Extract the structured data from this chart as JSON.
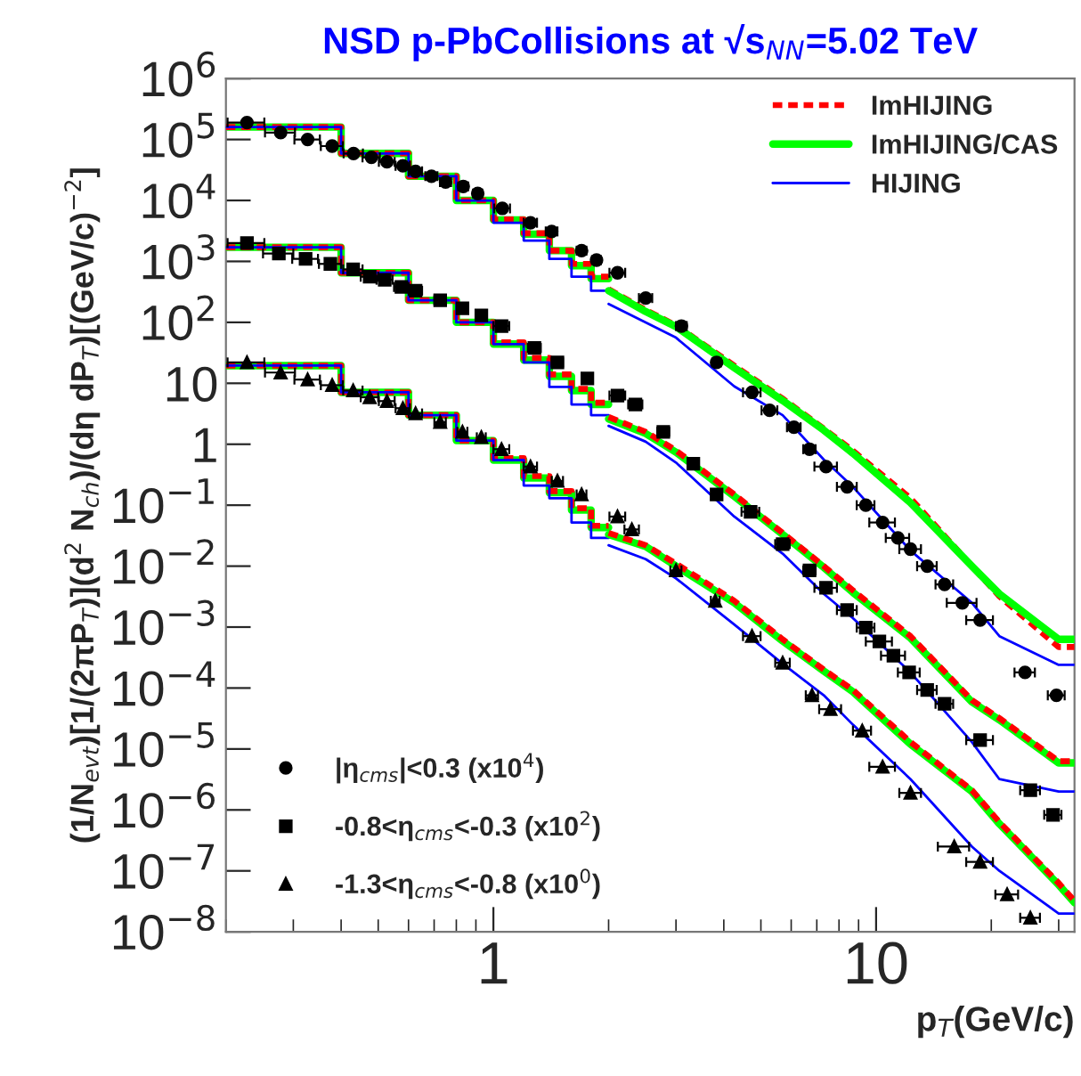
{
  "chart_data": {
    "type": "step",
    "title": "NSD p-PbCollisions at √s$_{NN}$=5.02 TeV",
    "xlabel": "p$_{T}$(GeV/c)",
    "ylabel": "(1/N$_{evt}$)[1/(2πP$_{T}$)](d$^{2}$ N$_{ch}$)/(dη dP$_{T}$)[(GeV/c)$^{−2}$]",
    "log": "xy",
    "legend": "top right",
    "grid": false,
    "xlim": [
      0.2,
      33
    ],
    "xticks": [
      1,
      10
    ],
    "ylim": [
      1e-08,
      1000000.0
    ],
    "yticks": [
      {
        "value": 1000000.0,
        "label": "10$^{6}$"
      },
      {
        "value": 100000.0,
        "label": "10$^{5}$"
      },
      {
        "value": 10000.0,
        "label": "10$^{4}$"
      },
      {
        "value": 1000.0,
        "label": "10$^{3}$"
      },
      {
        "value": 100.0,
        "label": "10$^{2}$"
      },
      {
        "value": 10,
        "label": "10"
      },
      {
        "value": 1,
        "label": "1"
      },
      {
        "value": 0.1,
        "label": "10$^{−1}$"
      },
      {
        "value": 0.01,
        "label": "10$^{−2}$"
      },
      {
        "value": 0.001,
        "label": "10$^{−3}$"
      },
      {
        "value": 0.0001,
        "label": "10$^{−4}$"
      },
      {
        "value": 1e-05,
        "label": "10$^{−5}$"
      },
      {
        "value": 1e-06,
        "label": "10$^{−6}$"
      },
      {
        "value": 1e-07,
        "label": "10$^{−7}$"
      },
      {
        "value": 1e-08,
        "label": "10$^{−8}$"
      }
    ],
    "x": [
      0.2,
      0.4,
      0.6,
      0.8,
      1.0,
      1.2,
      1.4,
      1.6,
      1.8,
      2.0
    ],
    "series": [
      {
        "color": "#00ff00",
        "line_style": "solid",
        "values": [
          160000.0,
          59000.0,
          25000.0,
          10000.0,
          4800.0,
          2800.0,
          1500.0,
          850,
          520,
          520
        ]
      },
      {
        "color": "#00ff00",
        "line_style": "solid",
        "values": [
          1700,
          650,
          230,
          100,
          44,
          24,
          13,
          7.6,
          4.5,
          4.5
        ]
      },
      {
        "color": "#00ff00",
        "line_style": "solid",
        "values": [
          19.5,
          7.1,
          3.0,
          1.15,
          0.55,
          0.28,
          0.16,
          0.083,
          0.043,
          0.043
        ]
      },
      {
        "color": "#ff0000",
        "line_style": "dashed",
        "values": [
          160000.0,
          59000.0,
          25000.0,
          10000.0,
          4900.0,
          2900.0,
          1500.0,
          910,
          560,
          560
        ]
      },
      {
        "color": "#ff0000",
        "line_style": "dashed",
        "values": [
          1700,
          650,
          230,
          100,
          47,
          26,
          14,
          8.1,
          4.8,
          4.8
        ]
      },
      {
        "color": "#ff0000",
        "line_style": "dashed",
        "values": [
          19.5,
          7.1,
          3.0,
          1.15,
          0.59,
          0.3,
          0.17,
          0.089,
          0.046,
          0.046
        ]
      },
      {
        "color": "#0000ff",
        "line_style": "solid",
        "values": [
          160000.0,
          59000.0,
          25000.0,
          10000.0,
          4300.0,
          2200.0,
          1100.0,
          560,
          330,
          330
        ]
      },
      {
        "color": "#0000ff",
        "line_style": "solid",
        "values": [
          1700,
          650,
          230,
          100,
          44,
          22,
          8.7,
          4.5,
          3.0,
          3.0
        ]
      },
      {
        "color": "#0000ff",
        "line_style": "solid",
        "values": [
          19.5,
          7.1,
          3.0,
          1.15,
          0.55,
          0.21,
          0.13,
          0.052,
          0.029,
          0.029
        ]
      },
      {
        "type": "line",
        "name": "ImHIJING",
        "color": "#ff0000",
        "line_style": "dashed",
        "x": [
          2.0,
          2.5,
          3.0,
          4.26,
          5.7,
          7.3,
          8.7,
          12.3,
          17.8,
          21,
          30,
          33
        ],
        "values": [
          350,
          160,
          89,
          19.5,
          5.6,
          1.8,
          0.78,
          0.13,
          0.01,
          0.0032,
          0.00047,
          0.00047
        ]
      },
      {
        "type": "line",
        "name": "ImHIJING/CAS",
        "color": "#00ff00",
        "line_style": "solid",
        "x": [
          2.0,
          2.5,
          3.0,
          4.26,
          5.7,
          7.3,
          8.7,
          12.3,
          17.8,
          21,
          30,
          33
        ],
        "values": [
          330,
          150,
          85,
          18,
          5.2,
          1.7,
          0.71,
          0.11,
          0.01,
          0.0035,
          0.00063,
          0.00063
        ]
      },
      {
        "type": "line",
        "name": "HIJING",
        "color": "#0000ff",
        "line_style": "solid",
        "x": [
          2.0,
          2.5,
          3.0,
          4.26,
          5.7,
          7.3,
          8.7,
          12.3,
          17.8,
          21,
          30,
          33
        ],
        "values": [
          200,
          100,
          56,
          8.9,
          3.0,
          0.56,
          0.2,
          0.018,
          0.0025,
          0.00071,
          0.00024,
          0.00024
        ]
      },
      {
        "type": "line",
        "color": "#0000ff",
        "line_style": "solid",
        "x": [
          2.0,
          2.5,
          3.0,
          4.26,
          5.7,
          7.3,
          8.7,
          12.3,
          17.8,
          21,
          30,
          33
        ],
        "values": [
          2.0,
          1.1,
          0.5,
          0.065,
          0.016,
          0.0035,
          0.0014,
          0.00018,
          1.3e-05,
          3.2e-06,
          2e-06,
          2e-06
        ]
      },
      {
        "type": "line",
        "color": "#0000ff",
        "line_style": "solid",
        "x": [
          2.0,
          2.5,
          3.0,
          4.26,
          5.7,
          7.3,
          8.7,
          12.3,
          17.8,
          21,
          30,
          33
        ],
        "values": [
          0.022,
          0.013,
          0.0063,
          0.0011,
          0.00025,
          7.6e-05,
          2.5e-05,
          3.2e-06,
          2.5e-07,
          1e-07,
          2e-08,
          2e-08
        ]
      },
      {
        "type": "line",
        "color": "#00ff00",
        "line_style": "solid",
        "x": [
          2.0,
          2.5,
          3.0,
          4.26,
          5.7,
          7.3,
          8.7,
          12.3,
          17.8,
          21,
          30,
          33
        ],
        "values": [
          2.6,
          1.5,
          0.74,
          0.14,
          0.033,
          0.0095,
          0.0037,
          0.00066,
          5.9e-05,
          3e-05,
          5.9e-06,
          5.9e-06
        ]
      },
      {
        "type": "line",
        "color": "#00ff00",
        "line_style": "solid",
        "x": [
          2.0,
          2.5,
          3.0,
          4.26,
          5.7,
          7.3,
          8.7,
          12.3,
          17.8,
          21,
          30,
          33
        ],
        "values": [
          0.033,
          0.021,
          0.01,
          0.0025,
          0.00059,
          0.00019,
          8.7e-05,
          1.2e-05,
          2e-06,
          5.9e-07,
          5.9e-08,
          3e-08
        ]
      },
      {
        "type": "line",
        "color": "#ff0000",
        "line_style": "dashed",
        "x": [
          2.0,
          2.5,
          3.0,
          4.26,
          5.7,
          7.3,
          8.7,
          12.3,
          17.8,
          21,
          30,
          33
        ],
        "values": [
          2.8,
          1.6,
          0.79,
          0.15,
          0.035,
          0.01,
          0.004,
          0.00071,
          6.3e-05,
          3.2e-05,
          6.3e-06,
          6.3e-06
        ]
      },
      {
        "type": "line",
        "color": "#ff0000",
        "line_style": "dashed",
        "x": [
          2.0,
          2.5,
          3.0,
          4.26,
          5.7,
          7.3,
          8.7,
          12.3,
          17.8,
          21,
          30,
          33
        ],
        "values": [
          0.035,
          0.022,
          0.011,
          0.0027,
          0.00063,
          0.0002,
          9.3e-05,
          1.3e-05,
          2.1e-06,
          6.3e-07,
          6.3e-08,
          3.2e-08
        ]
      },
      {
        "type": "scatter",
        "name": "|η$_{cms}$|<0.3 (x10$^{4}$)",
        "color": "#000000",
        "marker": "circle",
        "x": [
          0.227,
          0.278,
          0.327,
          0.379,
          0.431,
          0.48,
          0.527,
          0.58,
          0.626,
          0.689,
          0.75,
          0.834,
          0.91,
          1.055,
          1.25,
          1.42,
          1.7,
          1.86,
          2.11,
          2.5,
          3.1,
          3.83,
          4.74,
          5.27,
          6.1,
          6.7,
          7.4,
          8.4,
          9.4,
          10.4,
          11.4,
          12.3,
          13.6,
          15.1,
          16.8,
          18.7,
          24.5,
          29.6
        ],
        "values": [
          190000.0,
          130000.0,
          100000.0,
          78000.0,
          59000.0,
          51000.0,
          43000.0,
          37000.0,
          30000.0,
          25000.0,
          20000.0,
          17000.0,
          13000.0,
          7400,
          4300,
          3100,
          1500,
          1050,
          650,
          250,
          87,
          22,
          7.1,
          3.6,
          1.9,
          0.83,
          0.43,
          0.2,
          0.1,
          0.052,
          0.029,
          0.019,
          0.01,
          0.005,
          0.0025,
          0.0013,
          0.00018,
          7.6e-05
        ],
        "xerrors": [
          0.025,
          0.025,
          0.025,
          0.025,
          0.025,
          0.025,
          0.025,
          0.025,
          0.025,
          0.025,
          0.025,
          0.025,
          0.025,
          0.05,
          0.05,
          0.05,
          0.05,
          0.05,
          0.1,
          0.1,
          0.1,
          0.1,
          0.25,
          0.25,
          0.25,
          0.25,
          0.5,
          0.5,
          0.5,
          0.8,
          0.8,
          0.8,
          0.8,
          0.8,
          1.5,
          1.5,
          1.5,
          1.5
        ]
      },
      {
        "type": "scatter",
        "name": "-0.8<η$_{cms}$<-0.3 (x10$^{2}$)",
        "color": "#000000",
        "marker": "square",
        "x": [
          0.227,
          0.275,
          0.323,
          0.375,
          0.43,
          0.475,
          0.52,
          0.575,
          0.626,
          0.726,
          0.83,
          0.93,
          1.05,
          1.28,
          1.47,
          1.76,
          2.11,
          2.35,
          2.78,
          3.33,
          3.83,
          4.7,
          5.7,
          6.7,
          7.4,
          8.4,
          9.4,
          10.2,
          11.1,
          12.2,
          13.6,
          15.1,
          18.7,
          25.3,
          29
        ],
        "values": [
          2000,
          1350,
          1100,
          910,
          740,
          560,
          500,
          380,
          330,
          230,
          170,
          130,
          87,
          38,
          22,
          12,
          6.3,
          4.5,
          1.6,
          0.48,
          0.15,
          0.078,
          0.023,
          0.0085,
          0.0044,
          0.0019,
          0.00098,
          0.00058,
          0.00034,
          0.00018,
          9.3e-05,
          5.5e-05,
          1.4e-05,
          2.1e-06,
          8.3e-07
        ],
        "xerrors": [
          0.025,
          0.025,
          0.025,
          0.025,
          0.025,
          0.025,
          0.025,
          0.025,
          0.025,
          0.025,
          0.025,
          0.025,
          0.05,
          0.05,
          0.05,
          0.05,
          0.1,
          0.1,
          0.1,
          0.1,
          0.1,
          0.25,
          0.25,
          0.25,
          0.5,
          0.5,
          0.5,
          0.8,
          0.8,
          0.8,
          0.8,
          0.8,
          1.5,
          1.5,
          1.5
        ]
      },
      {
        "type": "scatter",
        "name": "-1.3<η$_{cms}$<-0.8 (x10$^{0}$)",
        "color": "#000000",
        "marker": "triangle",
        "x": [
          0.227,
          0.278,
          0.327,
          0.379,
          0.43,
          0.475,
          0.527,
          0.58,
          0.626,
          0.726,
          0.83,
          0.93,
          1.05,
          1.25,
          1.47,
          1.7,
          2.11,
          2.3,
          3.0,
          3.8,
          4.74,
          5.7,
          6.8,
          7.6,
          9.2,
          10.4,
          12.3,
          16,
          18.7,
          22,
          25.3
        ],
        "values": [
          22,
          15,
          11.5,
          9.3,
          7.6,
          5.9,
          5.1,
          3.9,
          3.2,
          2.3,
          1.6,
          1.3,
          0.83,
          0.43,
          0.25,
          0.15,
          0.065,
          0.04,
          0.0085,
          0.0027,
          0.00071,
          0.00026,
          7.6e-05,
          4.5e-05,
          2e-05,
          5.1e-06,
          1.9e-06,
          2.5e-07,
          1.4e-07,
          4.1e-08,
          1.7e-08
        ],
        "xerrors": [
          0.025,
          0.025,
          0.025,
          0.025,
          0.025,
          0.025,
          0.025,
          0.025,
          0.025,
          0.025,
          0.025,
          0.025,
          0.05,
          0.05,
          0.05,
          0.05,
          0.1,
          0.1,
          0.1,
          0.1,
          0.25,
          0.25,
          0.25,
          0.5,
          0.5,
          0.8,
          0.8,
          1.5,
          1.5,
          1.5,
          1.5
        ]
      }
    ]
  }
}
